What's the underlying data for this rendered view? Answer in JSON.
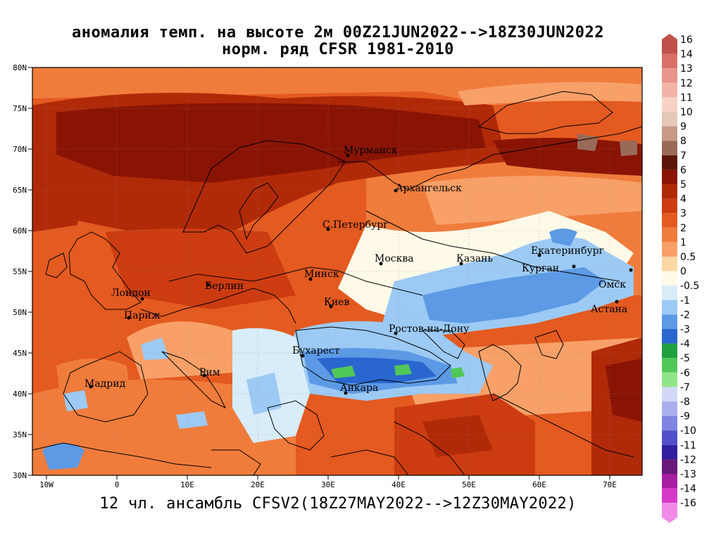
{
  "title_line1": "аномалия темп. на высоте 2м 00Z21JUN2022-->18Z30JUN2022",
  "title_line2": "норм. ряд CFSR 1981-2010",
  "footer": "12 чл. ансамбль CFSV2(18Z27MAY2022-->12Z30MAY2022)",
  "lat_labels": [
    "80N",
    "75N",
    "70N",
    "65N",
    "60N",
    "55N",
    "50N",
    "45N",
    "40N",
    "35N",
    "30N"
  ],
  "lon_labels": [
    "10W",
    "0",
    "10E",
    "20E",
    "30E",
    "40E",
    "50E",
    "60E",
    "70E"
  ],
  "cities": [
    {
      "name": "Мурманск"
    },
    {
      "name": "Архангельск"
    },
    {
      "name": "С.Петербург"
    },
    {
      "name": "Москва"
    },
    {
      "name": "Казань"
    },
    {
      "name": "Екатеринбург"
    },
    {
      "name": "Курган"
    },
    {
      "name": "Омск"
    },
    {
      "name": "Астана"
    },
    {
      "name": "Минск"
    },
    {
      "name": "Берлин"
    },
    {
      "name": "Лондон"
    },
    {
      "name": "Париж"
    },
    {
      "name": "Киев"
    },
    {
      "name": "Ростов-на-Дону"
    },
    {
      "name": "Бухарест"
    },
    {
      "name": "Рим"
    },
    {
      "name": "Мадрид"
    },
    {
      "name": "Анкара"
    }
  ],
  "colorbar": [
    {
      "label": "16",
      "color": "#c0504a"
    },
    {
      "label": "14",
      "color": "#d87068"
    },
    {
      "label": "13",
      "color": "#e8948a"
    },
    {
      "label": "12",
      "color": "#f2b4a8"
    },
    {
      "label": "11",
      "color": "#f8d2c6"
    },
    {
      "label": "10",
      "color": "#e6c8b8"
    },
    {
      "label": "9",
      "color": "#c69a86"
    },
    {
      "label": "8",
      "color": "#9a6a58"
    },
    {
      "label": "7",
      "color": "#5c1608"
    },
    {
      "label": "6",
      "color": "#8a1404"
    },
    {
      "label": "5",
      "color": "#b02a08"
    },
    {
      "label": "4",
      "color": "#cc3c10"
    },
    {
      "label": "3",
      "color": "#e45a20"
    },
    {
      "label": "2",
      "color": "#f07c3c"
    },
    {
      "label": "1",
      "color": "#f8a068"
    },
    {
      "label": "0.5",
      "color": "#fcd8a6"
    },
    {
      "label": "0",
      "color": "#fffae8"
    },
    {
      "label": "-0.5",
      "color": "#d8ecfa"
    },
    {
      "label": "-1",
      "color": "#9ccaf4"
    },
    {
      "label": "-2",
      "color": "#5c9ae6"
    },
    {
      "label": "-3",
      "color": "#2a66d0"
    },
    {
      "label": "-4",
      "color": "#20a040"
    },
    {
      "label": "-5",
      "color": "#50c858"
    },
    {
      "label": "-6",
      "color": "#90e488"
    },
    {
      "label": "-7",
      "color": "#d2d8f6"
    },
    {
      "label": "-8",
      "color": "#aab0ee"
    },
    {
      "label": "-9",
      "color": "#7e84e0"
    },
    {
      "label": "-10",
      "color": "#5050c8"
    },
    {
      "label": "-11",
      "color": "#3020a0"
    },
    {
      "label": "-12",
      "color": "#681878"
    },
    {
      "label": "-13",
      "color": "#a81ca0"
    },
    {
      "label": "-14",
      "color": "#d838c8"
    },
    {
      "label": "-16",
      "color": "#f08ae6"
    }
  ]
}
